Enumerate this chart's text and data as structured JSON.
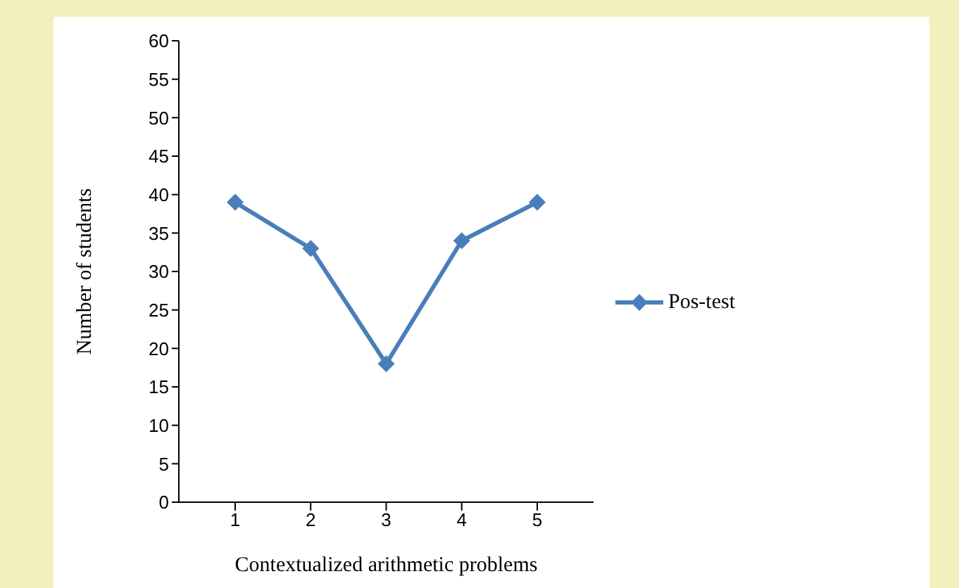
{
  "chart_data": {
    "type": "line",
    "xlabel": "Contextualized arithmetic problems",
    "ylabel": "Number of students",
    "categories": [
      "1",
      "2",
      "3",
      "4",
      "5"
    ],
    "series": [
      {
        "name": "Pos-test",
        "color": "#4a7ebb",
        "values": [
          39,
          33,
          18,
          34,
          39
        ]
      }
    ],
    "ylim": [
      0,
      60
    ],
    "yticks": [
      0,
      5,
      10,
      15,
      20,
      25,
      30,
      35,
      40,
      45,
      50,
      55,
      60
    ],
    "grid": false,
    "legend": "right",
    "marker": "diamond",
    "line_style": "solid"
  }
}
